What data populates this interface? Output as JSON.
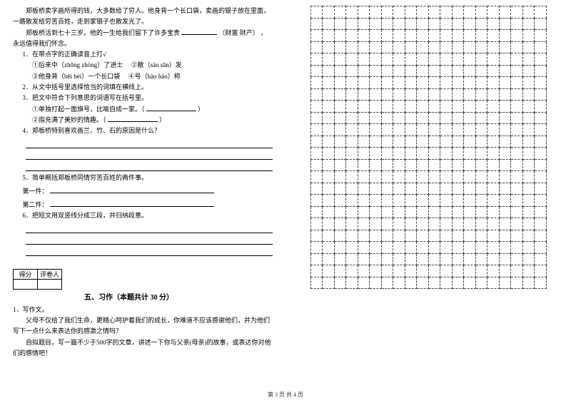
{
  "passage": {
    "p1": "郑板桥卖字画所得的钱，大多数给了穷人。他身背一个长口袋，卖画的银子放在里面，一路散发给穷苦百姓，走到家银子也散发光了。",
    "p2_pre": "郑板桥活到七十三岁。他的一生给我们留下了许多宝贵",
    "p2_blank_hint": "（财富  财产）",
    "p2_post": "，永远值得我们怀念。"
  },
  "q1": {
    "stem": "1．在带点字的正确读音上打√",
    "a": "①后来中（zhōng zhòng）了进士",
    "b": "②散（sàn sǎn）发",
    "c": "③他身背（bēi bèi）一个长口袋",
    "d": "④号（hào háo）称"
  },
  "q2": "2．从文中括号里选择恰当的词填在横线上。",
  "q3": {
    "stem": "3．把文中符合下列意思的词语写在括号里。",
    "a_pre": "①单独打起一面旗号，比喻自成一家。（",
    "a_post": "）",
    "b_pre": "②指充满了美妙的情趣。（",
    "b_post": "）"
  },
  "q4": "4．郑板桥特别喜欢画兰、竹、石的原因是什么？",
  "q5": {
    "stem": "5．简单概括郑板桥同情穷苦百姓的两件事。",
    "a": "第一件：",
    "b": "第二件："
  },
  "q6": "6．把短文用双竖线分成三段，并归纳段意。",
  "score": {
    "c1": "得分",
    "c2": "评卷人"
  },
  "section5": "五、习作（本题共计 30 分）",
  "essay": {
    "num": "1．写作文。",
    "p1": "父母不仅给了我们生命，更精心呵护着我们的成长，你难道不应该感谢他们，并为他们写下一点什么来表达你的感激之情吗？",
    "p2": "自拟题目，写一篇不少于500字的文章，讲述一下你与父亲(母亲)的故事，或表达你对他们的感情吧！"
  },
  "footer": "第 3 页  共 4 页",
  "grid": {
    "rows": 24,
    "cols": 20
  }
}
